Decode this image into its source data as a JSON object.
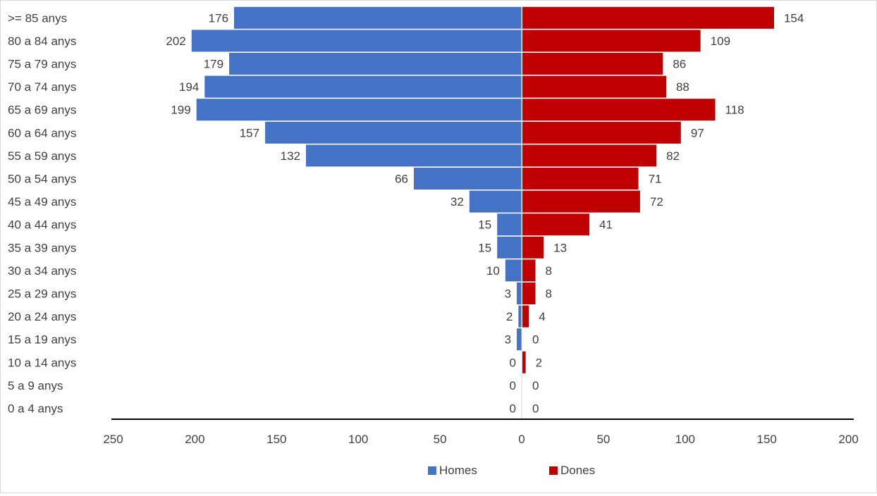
{
  "chart_data": {
    "type": "bar",
    "orientation": "horizontal-pyramid",
    "categories": [
      ">= 85 anys",
      "80 a 84 anys",
      "75 a 79 anys",
      "70 a 74 anys",
      "65 a 69 anys",
      "60 a 64 anys",
      "55 a 59 anys",
      "50 a 54 anys",
      "45 a 49 anys",
      "40 a 44 anys",
      "35 a 39 anys",
      "30 a 34 anys",
      "25 a 29 anys",
      "20 a 24 anys",
      "15 a 19 anys",
      "10 a 14 anys",
      "5 a 9  anys",
      "0 a 4 anys"
    ],
    "series": [
      {
        "name": "Homes",
        "color": "#4472c4",
        "side": "left",
        "values": [
          176,
          202,
          179,
          194,
          199,
          157,
          132,
          66,
          32,
          15,
          15,
          10,
          3,
          2,
          3,
          0,
          0,
          0
        ]
      },
      {
        "name": "Dones",
        "color": "#c00000",
        "side": "right",
        "values": [
          154,
          109,
          86,
          88,
          118,
          97,
          82,
          71,
          72,
          41,
          13,
          8,
          8,
          4,
          0,
          2,
          0,
          0
        ]
      }
    ],
    "x_ticks": [
      "250",
      "200",
      "150",
      "100",
      "50",
      "0",
      "50",
      "100",
      "150",
      "200"
    ],
    "xlim": [
      -250,
      200
    ],
    "title": "",
    "xlabel": "",
    "ylabel": "",
    "grid": false,
    "legend_position": "bottom"
  }
}
